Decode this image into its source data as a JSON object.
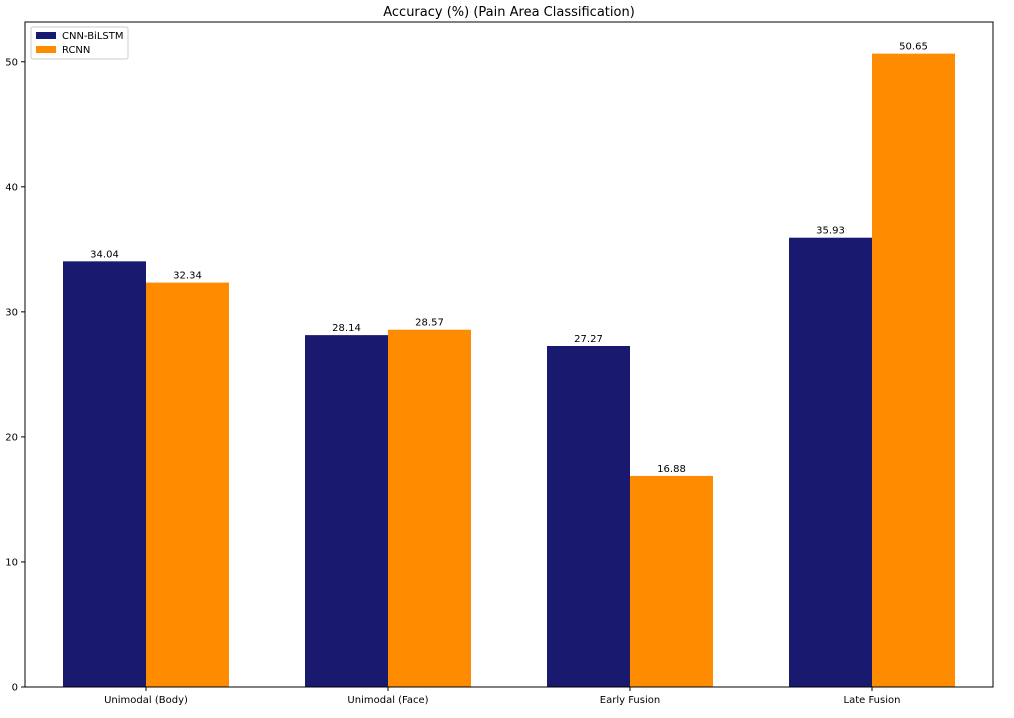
{
  "chart_data": {
    "type": "bar",
    "title": "Accuracy (%) (Pain Area Classification)",
    "xlabel": "",
    "ylabel": "",
    "categories": [
      "Unimodal (Body)",
      "Unimodal (Face)",
      "Early Fusion",
      "Late Fusion"
    ],
    "series": [
      {
        "name": "CNN-BiLSTM",
        "color": "#191970",
        "values": [
          34.04,
          28.14,
          27.27,
          35.93
        ]
      },
      {
        "name": "RCNN",
        "color": "#ff8c00",
        "values": [
          32.34,
          28.57,
          16.88,
          50.65
        ]
      }
    ],
    "ylim": [
      0,
      53.18
    ],
    "yticks": [
      0,
      10,
      20,
      30,
      40,
      50
    ],
    "grid": false,
    "legend": "top-left"
  }
}
